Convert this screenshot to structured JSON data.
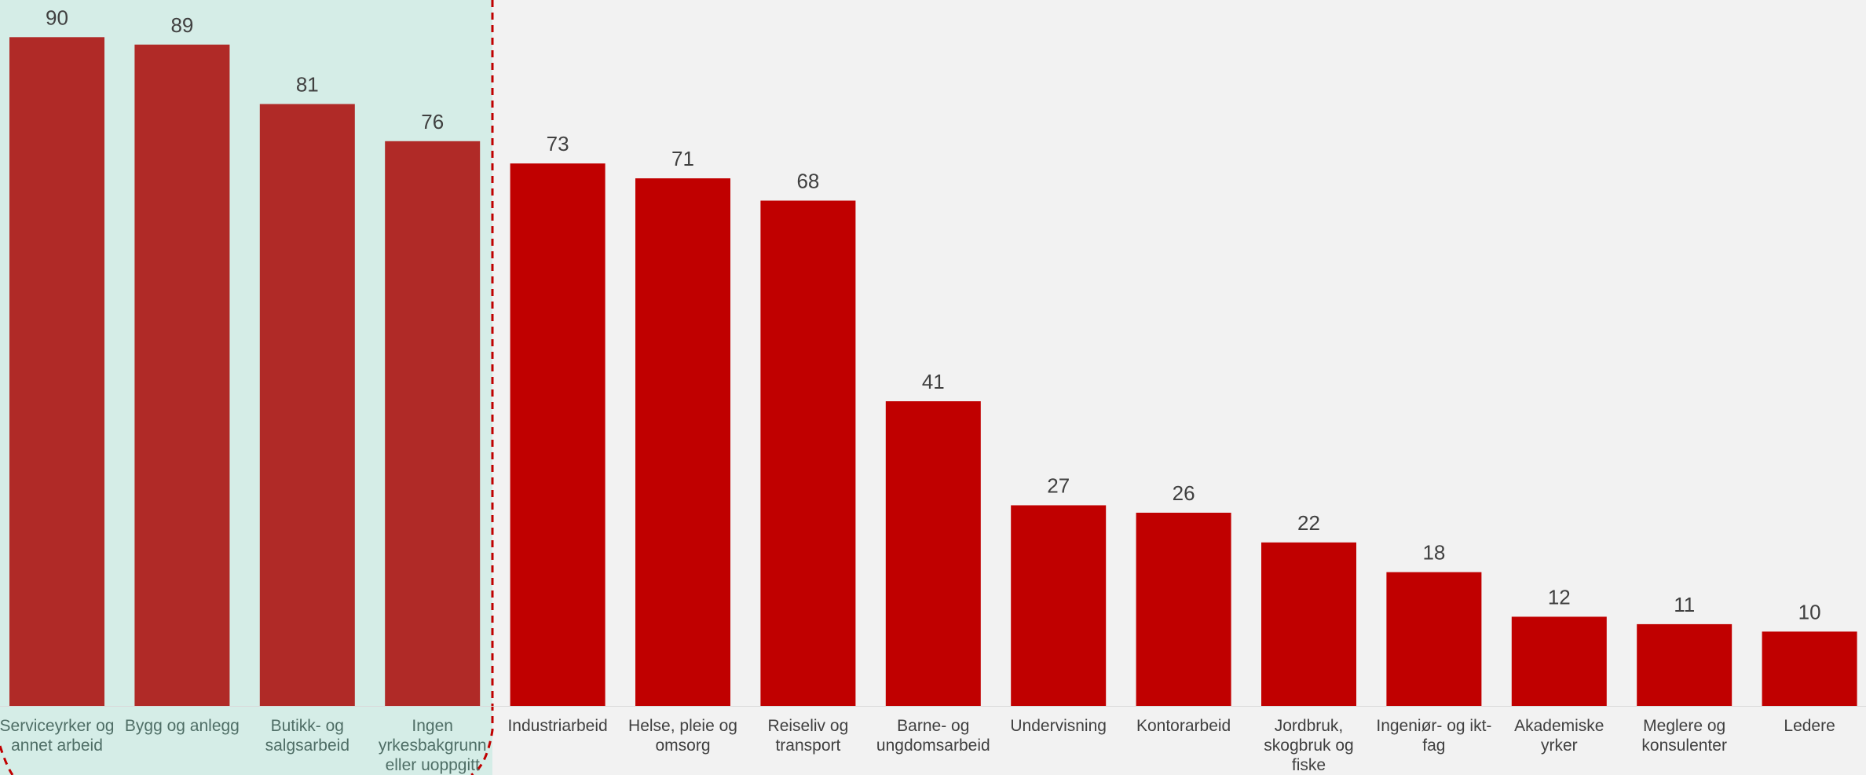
{
  "chart_data": {
    "type": "bar",
    "categories": [
      "Serviceyrker og annet arbeid",
      "Bygg og anlegg",
      "Butikk- og salgsarbeid",
      "Ingen yrkesbakgrunn eller uoppgitt",
      "Industriarbeid",
      "Helse, pleie og omsorg",
      "Reiseliv og transport",
      "Barne- og ungdomsarbeid",
      "Undervisning",
      "Kontorarbeid",
      "Jordbruk, skogbruk og fiske",
      "Ingeniør- og ikt-fag",
      "Akademiske yrker",
      "Meglere og konsulenter",
      "Ledere"
    ],
    "values": [
      90,
      89,
      81,
      76,
      73,
      71,
      68,
      41,
      27,
      26,
      22,
      18,
      12,
      11,
      10
    ],
    "colors": [
      "#b02a27",
      "#b02a27",
      "#b02a27",
      "#b02a27",
      "#c00000",
      "#c00000",
      "#c00000",
      "#c00000",
      "#c00000",
      "#c00000",
      "#c00000",
      "#c00000",
      "#c00000",
      "#c00000",
      "#c00000"
    ],
    "ylim": [
      0,
      95
    ]
  }
}
